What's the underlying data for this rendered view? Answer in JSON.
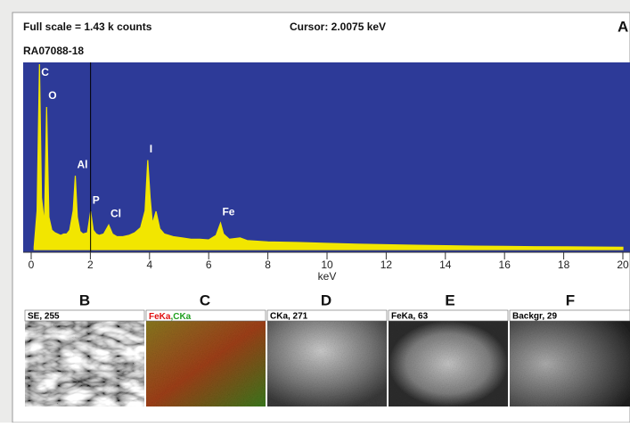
{
  "header": {
    "full_scale": "Full scale = 1.43 k counts",
    "cursor": "Cursor:  2.0075 keV",
    "sample": "RA07088-18",
    "panel_label": "A"
  },
  "chart_data": {
    "type": "area",
    "color": "#f2e600",
    "background": "#2d3a98",
    "xlabel": "keV",
    "x": [
      0.1,
      0.2,
      0.28,
      0.35,
      0.45,
      0.52,
      0.6,
      0.7,
      0.8,
      0.9,
      1.0,
      1.1,
      1.2,
      1.3,
      1.42,
      1.49,
      1.56,
      1.65,
      1.75,
      1.9,
      2.01,
      2.1,
      2.2,
      2.3,
      2.45,
      2.62,
      2.75,
      2.9,
      3.1,
      3.3,
      3.5,
      3.7,
      3.85,
      3.94,
      4.02,
      4.1,
      4.22,
      4.35,
      4.5,
      4.8,
      5.1,
      5.4,
      5.7,
      6.0,
      6.25,
      6.4,
      6.5,
      6.7,
      7.06,
      7.3,
      8,
      9,
      10,
      11,
      12,
      13,
      14,
      15,
      16,
      17,
      18,
      19,
      20
    ],
    "values": [
      20,
      300,
      1430,
      400,
      200,
      1100,
      250,
      150,
      130,
      120,
      110,
      120,
      120,
      150,
      300,
      570,
      250,
      140,
      120,
      130,
      295,
      150,
      120,
      110,
      120,
      190,
      120,
      100,
      100,
      110,
      130,
      170,
      300,
      690,
      400,
      200,
      295,
      160,
      120,
      100,
      90,
      80,
      80,
      75,
      110,
      205,
      120,
      80,
      90,
      70,
      60,
      55,
      48,
      42,
      38,
      34,
      30,
      27,
      25,
      23,
      22,
      20,
      18
    ],
    "xlim": [
      0,
      20
    ],
    "ylim": [
      0,
      1430
    ],
    "xticks": [
      0,
      2,
      4,
      6,
      8,
      10,
      12,
      14,
      16,
      18,
      20
    ],
    "cursor_x": 2.0075,
    "annotations": [
      {
        "text": "C",
        "x": 0.28
      },
      {
        "text": "O",
        "x": 0.52
      },
      {
        "text": "Al",
        "x": 1.49
      },
      {
        "text": "P",
        "x": 2.01
      },
      {
        "text": "Cl",
        "x": 2.62
      },
      {
        "text": "I",
        "x": 3.94
      },
      {
        "text": "Fe",
        "x": 6.4
      }
    ]
  },
  "panels": [
    {
      "letter": "B",
      "label": "SE, 255"
    },
    {
      "letter": "C",
      "label": [
        "FeKa",
        ",CKa"
      ]
    },
    {
      "letter": "D",
      "label": "CKa, 271"
    },
    {
      "letter": "E",
      "label": "FeKa, 63"
    },
    {
      "letter": "F",
      "label": "Backgr, 29"
    }
  ]
}
